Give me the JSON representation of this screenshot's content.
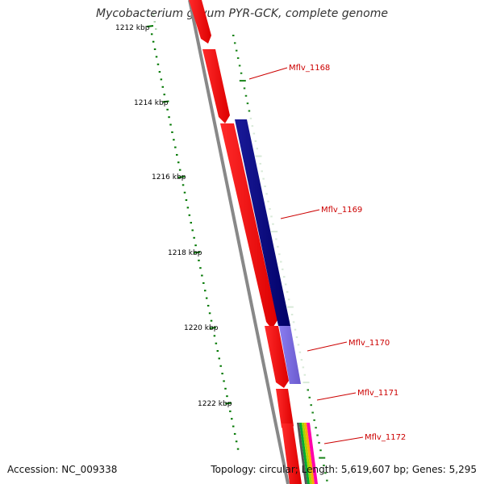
{
  "title": "Mycobacterium gilvum PYR-GCK, complete genome",
  "footer": {
    "accession": "Accession: NC_009338",
    "summary": "Topology: circular; Length: 5,619,607 bp; Genes: 5,295"
  },
  "scale_labels": [
    "1212 kbp",
    "1214 kbp",
    "1216 kbp",
    "1218 kbp",
    "1220 kbp",
    "1222 kbp"
  ],
  "gene_labels": [
    "Mflv_1168",
    "Mflv_1169",
    "Mflv_1170",
    "Mflv_1171",
    "Mflv_1172"
  ],
  "colors": {
    "backbone": "#888888",
    "forward_gene": "#ff0000",
    "gene_dark": "#000080",
    "gene_light": "#7b68ee",
    "tick": "#007700",
    "label": "#cc0000"
  }
}
